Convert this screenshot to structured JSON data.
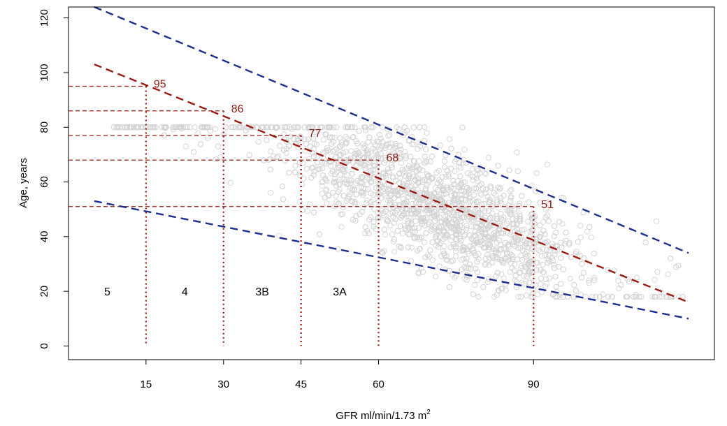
{
  "chart_data": {
    "type": "scatter",
    "xlabel": "GFR ml/min/1.73 m",
    "xlabel_sup": "2",
    "ylabel": "Age, years",
    "xlim": [
      0,
      125
    ],
    "ylim": [
      -5,
      124
    ],
    "x_ticks": [
      15,
      30,
      45,
      60,
      90
    ],
    "y_ticks": [
      0,
      20,
      40,
      60,
      80,
      100,
      120
    ],
    "grid": false,
    "colors": {
      "points": "#d3d3d3",
      "red_line": "#9b1a10",
      "blue_line": "#1c2f8f",
      "dotted": "#9b1a10"
    },
    "lines": [
      {
        "color": "blue",
        "style": "dashed",
        "x": [
          5,
          120
        ],
        "y": [
          124,
          34
        ]
      },
      {
        "color": "red",
        "style": "dashed",
        "x": [
          5,
          120
        ],
        "y": [
          103,
          16
        ]
      },
      {
        "color": "blue",
        "style": "dashed",
        "x": [
          5,
          120
        ],
        "y": [
          53,
          10
        ]
      }
    ],
    "cutoffs": [
      {
        "gfr": 15,
        "age": 95,
        "label": "95"
      },
      {
        "gfr": 30,
        "age": 86,
        "label": "86"
      },
      {
        "gfr": 45,
        "age": 77,
        "label": "77"
      },
      {
        "gfr": 60,
        "age": 68,
        "label": "68"
      },
      {
        "gfr": 90,
        "age": 51,
        "label": "51"
      }
    ],
    "stages": [
      {
        "label": "5",
        "x": 7.5,
        "y": 20
      },
      {
        "label": "4",
        "x": 22.5,
        "y": 20
      },
      {
        "label": "3B",
        "x": 37.5,
        "y": 20
      },
      {
        "label": "3A",
        "x": 52.5,
        "y": 20
      }
    ],
    "scatter_cloud": {
      "description_note": "",
      "n": 2600,
      "age_range": [
        18,
        80
      ],
      "gfr_range": [
        5,
        119
      ]
    }
  }
}
